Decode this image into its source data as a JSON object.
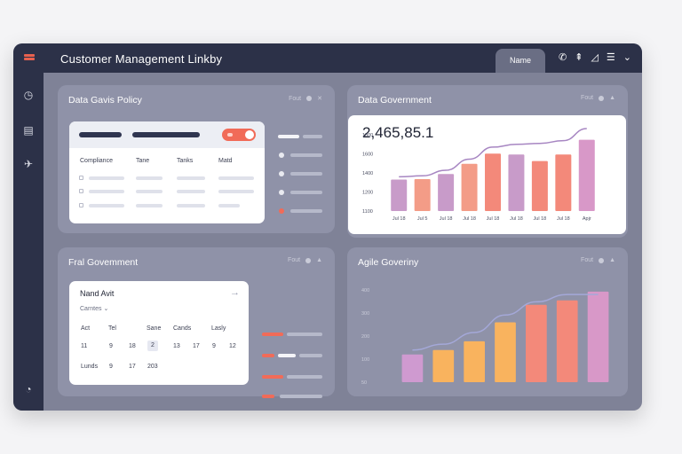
{
  "app": {
    "title": "Customer Management  Linkby",
    "tab_name": "Name"
  },
  "titlebar_icons": [
    "phone-icon",
    "signal-icon",
    "share-icon",
    "list-menu-icon",
    "chevron-down-icon"
  ],
  "sidebar": {
    "icons": [
      "clock-icon",
      "document-icon",
      "bird-icon",
      "alarm-icon"
    ]
  },
  "panels": {
    "policy": {
      "title": "Data Gavis Policy",
      "control_label": "Fout",
      "table_headers": [
        "Compliance",
        "Tane",
        "Tanks",
        "Matd"
      ]
    },
    "government": {
      "title": "Data Government",
      "control_label": "Fout",
      "big_value": "2,465,85.1",
      "y_ticks": [
        "1800",
        "1600",
        "1400",
        "1200",
        "1100"
      ],
      "x_labels": [
        "Jul 18",
        "Jul 5",
        "Jul 18",
        "Jul 18",
        "Jul 18",
        "Jul 18",
        "Jul 18",
        "Jul 18",
        "Apjr"
      ]
    },
    "fral": {
      "title": "Fral Govemment",
      "control_label": "Fout",
      "calendar": {
        "title": "Nand Avit",
        "dropdown": "Carntes",
        "headers": [
          "Act",
          "Tel",
          "",
          "Sane",
          "Cands",
          "",
          "Lasly"
        ],
        "rows": [
          [
            "11",
            "9",
            "18",
            "2",
            "13",
            "17",
            "9",
            "12"
          ],
          [
            "Lunds",
            "9",
            "17",
            "203"
          ]
        ]
      }
    },
    "agile": {
      "title": "Agile Goveriny",
      "control_label": "Fout",
      "y_ticks": [
        "400",
        "300",
        "200",
        "100",
        "50"
      ]
    }
  },
  "chart_data": [
    {
      "type": "bar",
      "title": "2,465,85.1",
      "categories": [
        "Jul 18",
        "Jul 5",
        "Jul 18",
        "Jul 18",
        "Jul 18",
        "Jul 18",
        "Jul 18",
        "Jul 18",
        "Apjr"
      ],
      "values": [
        1340,
        1345,
        1400,
        1510,
        1620,
        1610,
        1540,
        1610,
        1770
      ],
      "trend": [
        1370,
        1380,
        1440,
        1560,
        1690,
        1720,
        1730,
        1760,
        1890
      ],
      "ylim": [
        1000,
        1900
      ],
      "colors": [
        "#c89bc9",
        "#f39c87",
        "#c89bc9",
        "#f39c87",
        "#f3897a",
        "#c89bc9",
        "#f3897a",
        "#f3897a",
        "#d898c8"
      ]
    },
    {
      "type": "bar",
      "categories": [
        "",
        "",
        "",
        "",
        "",
        "",
        ""
      ],
      "values": [
        95,
        110,
        140,
        205,
        265,
        280,
        310
      ],
      "trend": [
        110,
        130,
        170,
        230,
        275,
        300,
        300
      ],
      "ylim": [
        0,
        340
      ],
      "colors": [
        "#cf9ad0",
        "#f9b35e",
        "#f9b35e",
        "#f9b35e",
        "#f3897a",
        "#f3897a",
        "#d898c8"
      ]
    }
  ]
}
